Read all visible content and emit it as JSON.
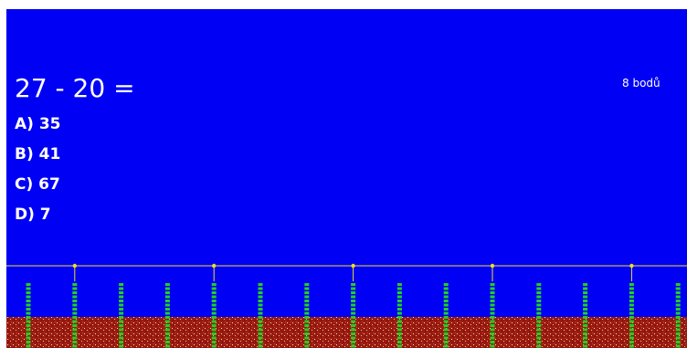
{
  "question": "27 - 20 =",
  "answers": [
    "A) 35",
    "B) 41",
    "C) 67",
    "D) 7"
  ],
  "score": "8 bodů"
}
